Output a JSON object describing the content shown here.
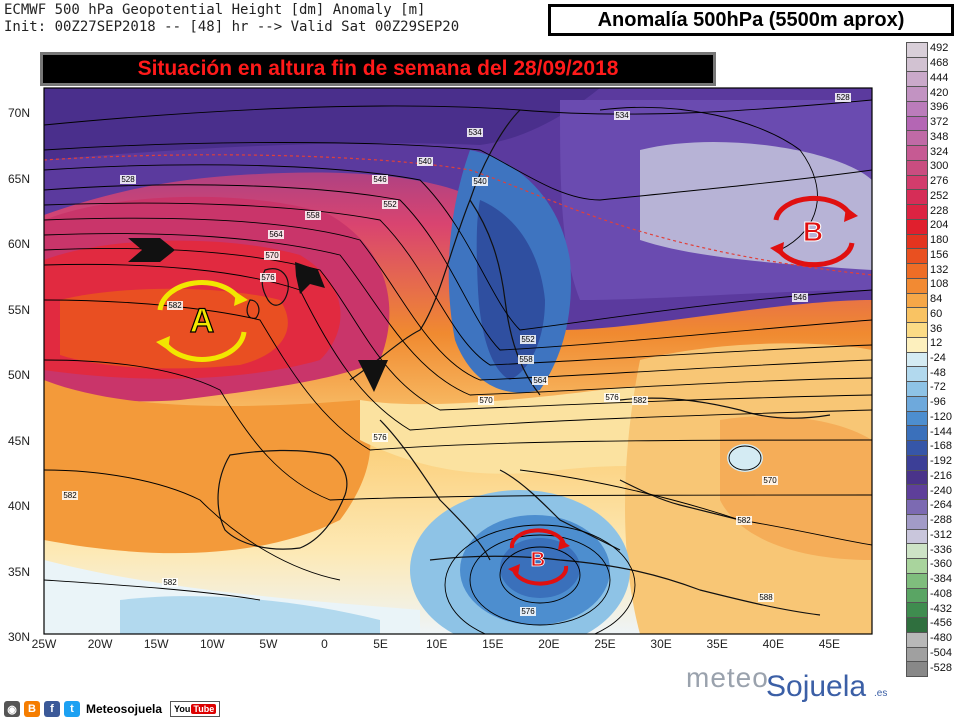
{
  "header": {
    "line1": "ECMWF 500 hPa Geopotential Height [dm] Anomaly [m]",
    "line2": "Init: 00Z27SEP2018 -- [48] hr --> Valid Sat 00Z29SEP20"
  },
  "title_box": "Anomalía 500hPa (5500m aprox)",
  "banner": "Situación en altura fin de semana del 28/09/2018",
  "lat_labels": [
    "70N",
    "65N",
    "60N",
    "55N",
    "50N",
    "45N",
    "40N",
    "35N",
    "30N"
  ],
  "lon_labels": [
    "25W",
    "20W",
    "15W",
    "10W",
    "5W",
    "0",
    "5E",
    "10E",
    "15E",
    "20E",
    "25E",
    "30E",
    "35E",
    "40E",
    "45E"
  ],
  "colorbar": {
    "labels": [
      "492",
      "468",
      "444",
      "420",
      "396",
      "372",
      "348",
      "324",
      "300",
      "276",
      "252",
      "228",
      "204",
      "180",
      "156",
      "132",
      "108",
      "84",
      "60",
      "36",
      "12",
      "-24",
      "-48",
      "-72",
      "-96",
      "-120",
      "-144",
      "-168",
      "-192",
      "-216",
      "-240",
      "-264",
      "-288",
      "-312",
      "-336",
      "-360",
      "-384",
      "-408",
      "-432",
      "-456",
      "-480",
      "-504",
      "-528"
    ],
    "colors": [
      "#d9cfd9",
      "#d2c2d2",
      "#caa9ca",
      "#c293c2",
      "#bb7cbb",
      "#b466b4",
      "#c06aa6",
      "#c65a93",
      "#c94d80",
      "#d23c6c",
      "#d62d57",
      "#dc2342",
      "#e01f2d",
      "#e3341f",
      "#e95020",
      "#ee6d26",
      "#f28a33",
      "#f6a748",
      "#f9c363",
      "#fbdb86",
      "#fdf0be",
      "#d4ebf3",
      "#b2d9ee",
      "#8ec3e6",
      "#6ea9dc",
      "#4d8ecf",
      "#3a70bb",
      "#3656a8",
      "#3c3f97",
      "#4a338a",
      "#5e3f9a",
      "#7c6ab2",
      "#a29bc7",
      "#c9c6dc",
      "#cde3c6",
      "#a9d49d",
      "#7fbd7d",
      "#5aa564",
      "#3f8c4f",
      "#2f6f3e",
      "#b8b8b8",
      "#a0a0a0",
      "#888888"
    ]
  },
  "contours": [
    "528",
    "534",
    "540",
    "546",
    "552",
    "558",
    "564",
    "570",
    "576",
    "582",
    "528",
    "534",
    "540",
    "546",
    "552",
    "558",
    "564",
    "570",
    "576",
    "582",
    "576",
    "582",
    "582",
    "576",
    "570",
    "582",
    "588"
  ],
  "markers": {
    "high": {
      "letter": "A",
      "color": "#f2e600"
    },
    "low_north": {
      "letter": "B",
      "color": "#e01010"
    },
    "low_south": {
      "letter": "B",
      "color": "#e01010"
    }
  },
  "social": {
    "handle": "Meteosojuela",
    "youtube": "You",
    "youtube_tube": "Tube"
  },
  "logo": {
    "part1": "meteo",
    "part2": "Sojuela",
    "tld": ".es"
  }
}
